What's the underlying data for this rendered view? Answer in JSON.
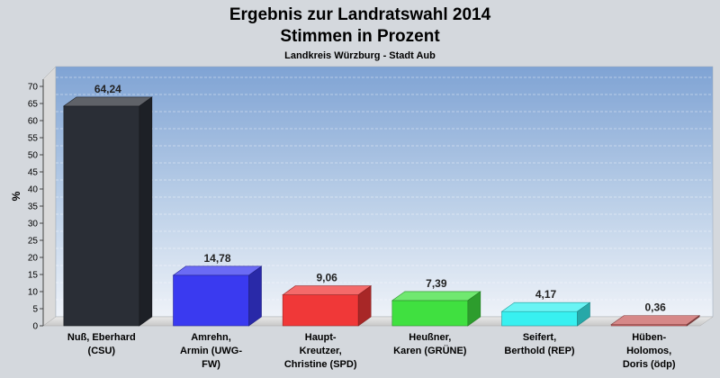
{
  "chart_data": {
    "type": "bar",
    "title": "Ergebnis zur Landratswahl 2014",
    "subtitle_line2": "Stimmen in Prozent",
    "subtitle": "Landkreis Würzburg - Stadt Aub",
    "ylabel": "%",
    "xlabel": "",
    "ylim": [
      0,
      70
    ],
    "yticks": [
      "0",
      "5",
      "10",
      "15",
      "20",
      "25",
      "30",
      "35",
      "40",
      "45",
      "50",
      "55",
      "60",
      "65",
      "70"
    ],
    "grid": true,
    "legend": "none",
    "categories": [
      [
        "Nuß, Eberhard",
        "(CSU)"
      ],
      [
        "Amrehn,",
        "Armin (UWG-",
        "FW)"
      ],
      [
        "Haupt-",
        "Kreutzer,",
        "Christine (SPD)"
      ],
      [
        "Heußner,",
        "Karen (GRÜNE)"
      ],
      [
        "Seifert,",
        "Berthold (REP)"
      ],
      [
        "Hüben-",
        "Holomos,",
        "Doris (ödp)"
      ]
    ],
    "values": [
      64.24,
      14.78,
      9.06,
      7.39,
      4.17,
      0.36
    ],
    "value_labels": [
      "64,24",
      "14,78",
      "9,06",
      "7,39",
      "4,17",
      "0,36"
    ],
    "colors": [
      "#2a2e36",
      "#3a3af0",
      "#f03838",
      "#40e040",
      "#38f0f0",
      "#c86060"
    ]
  }
}
